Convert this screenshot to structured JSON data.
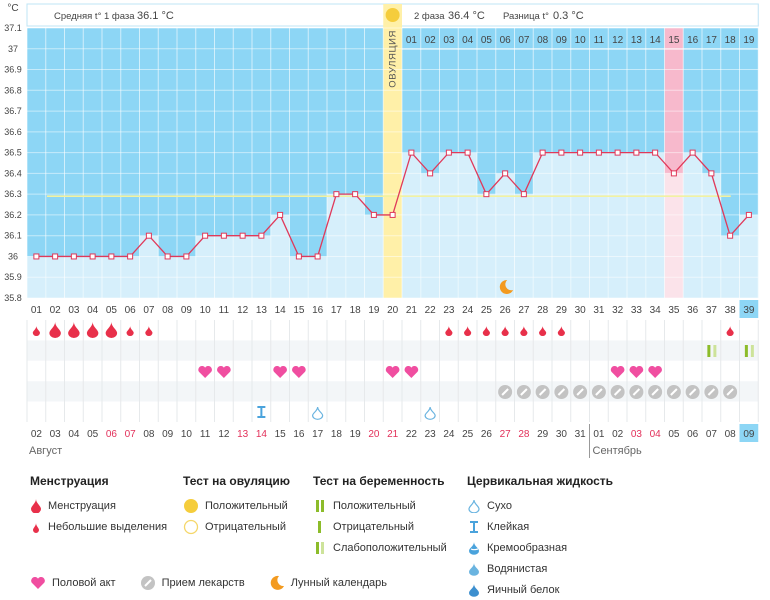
{
  "chart_data": {
    "type": "line",
    "unit_label": "°C",
    "header": {
      "phase1": "Средняя t° 1 фаза",
      "phase1_value": "36.1 °C",
      "phase2": "2 фаза",
      "phase2_value": "36.4 °C",
      "diff": "Разница t°",
      "diff_value": "0.3 °C"
    },
    "ovulation_label": "ОВУЛЯЦИЯ",
    "ovulation_day": 20,
    "highlight_day": 35,
    "ylim": [
      35.8,
      37.1
    ],
    "yticks": [
      "35.8",
      "35.9",
      "36",
      "36.1",
      "36.2",
      "36.3",
      "36.4",
      "36.5",
      "36.6",
      "36.7",
      "36.8",
      "36.9",
      "37",
      "37.1"
    ],
    "coverline": 36.29,
    "coverline_range": [
      17,
      38
    ],
    "cycle_days": [
      "01",
      "02",
      "03",
      "04",
      "05",
      "06",
      "07",
      "08",
      "09",
      "10",
      "11",
      "12",
      "13",
      "14",
      "15",
      "16",
      "17",
      "18",
      "19",
      "20",
      "21",
      "22",
      "23",
      "24",
      "25",
      "26",
      "27",
      "28",
      "29",
      "30",
      "31",
      "32",
      "33",
      "34",
      "35",
      "36",
      "37",
      "38",
      "39"
    ],
    "phase2_days": [
      "01",
      "02",
      "03",
      "04",
      "05",
      "06",
      "07",
      "08",
      "09",
      "10",
      "11",
      "12",
      "13",
      "14",
      "15",
      "16",
      "17",
      "18",
      "19"
    ],
    "temperatures": [
      36.0,
      36.0,
      36.0,
      36.0,
      36.0,
      36.0,
      36.1,
      36.0,
      36.0,
      36.1,
      36.1,
      36.1,
      36.1,
      36.2,
      36.0,
      36.0,
      36.3,
      36.3,
      36.2,
      36.2,
      36.5,
      36.4,
      36.5,
      36.5,
      36.3,
      36.4,
      36.3,
      36.5,
      36.5,
      36.5,
      36.5,
      36.5,
      36.5,
      36.5,
      36.4,
      36.5,
      36.4,
      36.1,
      36.2
    ],
    "moon_day": 26,
    "dates": [
      "02",
      "03",
      "04",
      "05",
      "06",
      "07",
      "08",
      "09",
      "10",
      "11",
      "12",
      "13",
      "14",
      "15",
      "16",
      "17",
      "18",
      "19",
      "20",
      "21",
      "22",
      "23",
      "24",
      "25",
      "26",
      "27",
      "28",
      "29",
      "30",
      "31",
      "01",
      "02",
      "03",
      "04",
      "05",
      "06",
      "07",
      "08",
      "09"
    ],
    "red_dates": [
      "06",
      "07",
      "13",
      "14",
      "20",
      "21",
      "27",
      "28",
      "03",
      "04"
    ],
    "months": [
      "Август",
      "Сентябрь"
    ],
    "rows": {
      "menstruation_big": [
        1,
        2,
        3,
        4
      ],
      "menstruation_small": [
        0,
        5,
        6,
        22,
        23,
        24,
        25,
        26,
        27,
        28,
        37
      ],
      "pregnancy_test": [
        36,
        38
      ],
      "intercourse": [
        9,
        10,
        13,
        14,
        19,
        20,
        31,
        32,
        33
      ],
      "medication": [
        25,
        26,
        27,
        28,
        29,
        30,
        31,
        32,
        33,
        34,
        35,
        36,
        37
      ],
      "fluid_sticky": [
        12
      ],
      "fluid_dry": [
        15,
        21
      ]
    }
  },
  "legend": {
    "menstruation": {
      "title": "Менструация",
      "items": [
        "Менструация",
        "Небольшие выделения"
      ]
    },
    "ovulation_test": {
      "title": "Тест на овуляцию",
      "items": [
        "Положительный",
        "Отрицательный"
      ]
    },
    "pregnancy_test": {
      "title": "Тест на беременность",
      "items": [
        "Положительный",
        "Отрицательный",
        "Слабоположительный"
      ]
    },
    "cervical": {
      "title": "Цервикальная жидкость",
      "items": [
        "Сухо",
        "Клейкая",
        "Кремообразная",
        "Водянистая",
        "Яичный белок"
      ]
    },
    "bottom": [
      "Половой акт",
      "Прием лекарств",
      "Лунный календарь"
    ]
  },
  "colors": {
    "plot_bg": "#8dd6f5",
    "bar": "#d6effb",
    "line": "#e0395a",
    "ovulation": "#fff0a8",
    "highlight": "#f7b9cc",
    "red": "#e8304a",
    "heart": "#f04ea0",
    "green": "#8cbc2a",
    "gray": "#c3c3c3",
    "orange": "#f39a1f",
    "coverline": "#f2f2a2"
  }
}
